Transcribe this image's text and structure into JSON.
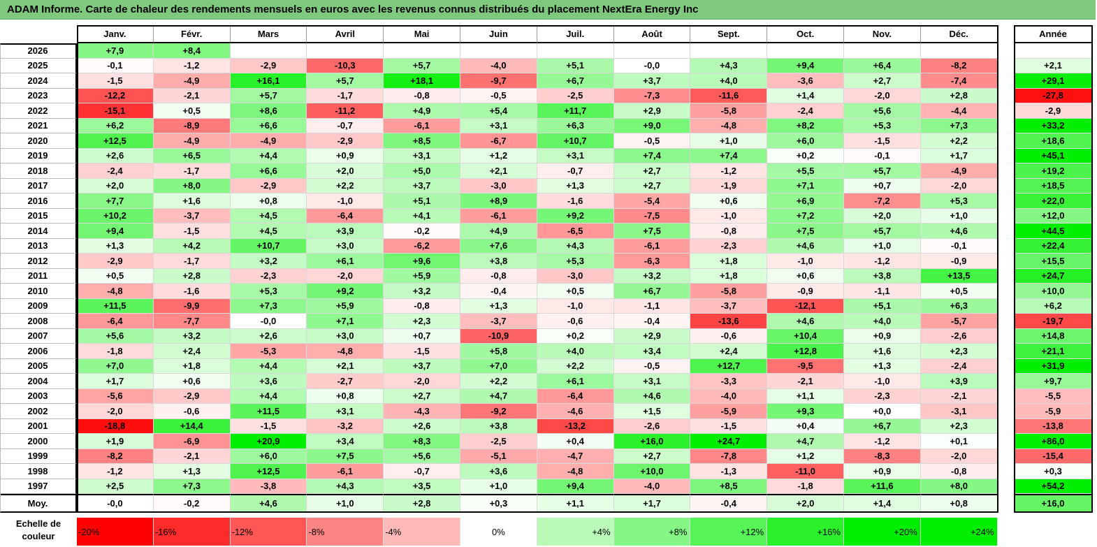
{
  "title": "ADAM Informe. Carte de chaleur des rendements mensuels en euros avec les revenus connus distribués du placement NextEra Energy Inc",
  "chart_data": {
    "type": "heatmap",
    "months": [
      "Janv.",
      "Févr.",
      "Mars",
      "Avril",
      "Mai",
      "Juin",
      "Juil.",
      "Août",
      "Sept.",
      "Oct.",
      "Nov.",
      "Déc."
    ],
    "year_header": "Année",
    "avg_label": "Moy.",
    "rows": [
      {
        "year": "2026",
        "m": [
          "+7,9",
          "+8,4",
          "",
          "",
          "",
          "",
          "",
          "",
          "",
          "",
          "",
          ""
        ],
        "y": ""
      },
      {
        "year": "2025",
        "m": [
          "-0,1",
          "-1,2",
          "-2,9",
          "-10,3",
          "+5,7",
          "-4,0",
          "+5,1",
          "-0,0",
          "+4,3",
          "+9,4",
          "+6,4",
          "-8,2"
        ],
        "y": "+2,1"
      },
      {
        "year": "2024",
        "m": [
          "-1,5",
          "-4,9",
          "+16,1",
          "+5,7",
          "+18,1",
          "-9,7",
          "+6,7",
          "+3,7",
          "+4,0",
          "-3,6",
          "+2,7",
          "-7,4"
        ],
        "y": "+29,1"
      },
      {
        "year": "2023",
        "m": [
          "-12,2",
          "-2,1",
          "+5,7",
          "-1,7",
          "-0,8",
          "-0,5",
          "-2,5",
          "-7,3",
          "-11,6",
          "+1,4",
          "-2,0",
          "+2,8"
        ],
        "y": "-27,8"
      },
      {
        "year": "2022",
        "m": [
          "-15,1",
          "+0,5",
          "+8,6",
          "-11,2",
          "+4,9",
          "+5,4",
          "+11,7",
          "+2,9",
          "-5,8",
          "-2,4",
          "+5,6",
          "-4,4"
        ],
        "y": "-2,9"
      },
      {
        "year": "2021",
        "m": [
          "+6,2",
          "-8,9",
          "+6,6",
          "-0,7",
          "-6,1",
          "+3,1",
          "+6,3",
          "+9,0",
          "-4,8",
          "+8,2",
          "+5,3",
          "+7,3"
        ],
        "y": "+33,2"
      },
      {
        "year": "2020",
        "m": [
          "+12,5",
          "-4,9",
          "-4,9",
          "-2,9",
          "+8,5",
          "-6,7",
          "+10,7",
          "-0,5",
          "+1,0",
          "+6,0",
          "-1,5",
          "+2,2"
        ],
        "y": "+18,6"
      },
      {
        "year": "2019",
        "m": [
          "+2,6",
          "+6,5",
          "+4,4",
          "+0,9",
          "+3,1",
          "+1,2",
          "+3,1",
          "+7,4",
          "+7,4",
          "+0,2",
          "-0,1",
          "+1,7"
        ],
        "y": "+45,1"
      },
      {
        "year": "2018",
        "m": [
          "-2,4",
          "-1,7",
          "+6,6",
          "+2,0",
          "+5,0",
          "+2,1",
          "-0,7",
          "+2,7",
          "-1,2",
          "+5,5",
          "+5,7",
          "-4,9"
        ],
        "y": "+19,2"
      },
      {
        "year": "2017",
        "m": [
          "+2,0",
          "+8,0",
          "-2,9",
          "+2,2",
          "+3,7",
          "-3,0",
          "+1,3",
          "+2,7",
          "-1,9",
          "+7,1",
          "+0,7",
          "-2,0"
        ],
        "y": "+18,5"
      },
      {
        "year": "2016",
        "m": [
          "+7,7",
          "+1,6",
          "+0,8",
          "-1,0",
          "+5,1",
          "+8,9",
          "-1,6",
          "-5,4",
          "+0,6",
          "+6,9",
          "-7,2",
          "+5,3"
        ],
        "y": "+22,0"
      },
      {
        "year": "2015",
        "m": [
          "+10,2",
          "-3,7",
          "+4,5",
          "-6,4",
          "+4,1",
          "-6,1",
          "+9,2",
          "-7,5",
          "-1,0",
          "+7,2",
          "+2,0",
          "+1,0"
        ],
        "y": "+12,0"
      },
      {
        "year": "2014",
        "m": [
          "+9,4",
          "-1,5",
          "+4,5",
          "+3,9",
          "-0,2",
          "+4,9",
          "-6,5",
          "+7,5",
          "-0,8",
          "+7,5",
          "+5,7",
          "+4,6"
        ],
        "y": "+44,5"
      },
      {
        "year": "2013",
        "m": [
          "+1,3",
          "+4,2",
          "+10,7",
          "+3,0",
          "-6,2",
          "+7,6",
          "+4,3",
          "-6,1",
          "-2,3",
          "+4,6",
          "+1,0",
          "-0,1"
        ],
        "y": "+22,4"
      },
      {
        "year": "2012",
        "m": [
          "-2,9",
          "-1,7",
          "+3,2",
          "+6,1",
          "+9,6",
          "+3,8",
          "+5,3",
          "-6,3",
          "+1,8",
          "-1,0",
          "-1,2",
          "-0,9"
        ],
        "y": "+15,5"
      },
      {
        "year": "2011",
        "m": [
          "+0,5",
          "+2,8",
          "-2,3",
          "-2,0",
          "+5,9",
          "-0,8",
          "-3,0",
          "+3,2",
          "+1,8",
          "+0,6",
          "+3,8",
          "+13,5"
        ],
        "y": "+24,7"
      },
      {
        "year": "2010",
        "m": [
          "-4,8",
          "-1,6",
          "+5,3",
          "+9,2",
          "+3,2",
          "-0,4",
          "+0,5",
          "+6,7",
          "-5,8",
          "-0,9",
          "-1,1",
          "+0,5"
        ],
        "y": "+10,0"
      },
      {
        "year": "2009",
        "m": [
          "+11,5",
          "-9,9",
          "+7,3",
          "+5,9",
          "-0,8",
          "+1,3",
          "-1,0",
          "-1,1",
          "-3,7",
          "-12,1",
          "+5,1",
          "+6,3"
        ],
        "y": "+6,2"
      },
      {
        "year": "2008",
        "m": [
          "-6,4",
          "-7,7",
          "-0,0",
          "+7,1",
          "+2,3",
          "-3,7",
          "-0,6",
          "-0,4",
          "-13,6",
          "+4,6",
          "+4,0",
          "-5,7"
        ],
        "y": "-19,7"
      },
      {
        "year": "2007",
        "m": [
          "+5,6",
          "+3,2",
          "+2,6",
          "+3,0",
          "+0,7",
          "-10,9",
          "+0,2",
          "+2,9",
          "-0,6",
          "+10,4",
          "+0,9",
          "-2,6"
        ],
        "y": "+14,8"
      },
      {
        "year": "2006",
        "m": [
          "-1,8",
          "+2,4",
          "-5,3",
          "-4,8",
          "-1,5",
          "+5,8",
          "+4,0",
          "+3,4",
          "+2,4",
          "+12,8",
          "+1,6",
          "+2,3"
        ],
        "y": "+21,1"
      },
      {
        "year": "2005",
        "m": [
          "+7,0",
          "+1,8",
          "+4,4",
          "+2,1",
          "+3,7",
          "+7,0",
          "+2,2",
          "-0,5",
          "+12,7",
          "-9,5",
          "+1,3",
          "-2,4"
        ],
        "y": "+31,9"
      },
      {
        "year": "2004",
        "m": [
          "+1,7",
          "+0,6",
          "+3,6",
          "-2,7",
          "-2,0",
          "+2,2",
          "+6,1",
          "+3,1",
          "-3,3",
          "-2,1",
          "-1,0",
          "+3,9"
        ],
        "y": "+9,7"
      },
      {
        "year": "2003",
        "m": [
          "-5,6",
          "-2,9",
          "+4,4",
          "+0,8",
          "+2,7",
          "+4,7",
          "-6,4",
          "+4,6",
          "-4,0",
          "+1,1",
          "-2,3",
          "-2,1"
        ],
        "y": "-5,5"
      },
      {
        "year": "2002",
        "m": [
          "-2,0",
          "-0,6",
          "+11,5",
          "+3,1",
          "-4,3",
          "-9,2",
          "-4,6",
          "+1,5",
          "-5,9",
          "+9,3",
          "+0,0",
          "-3,1"
        ],
        "y": "-5,9"
      },
      {
        "year": "2001",
        "m": [
          "-18,8",
          "+14,4",
          "-1,5",
          "-3,2",
          "+2,6",
          "+3,8",
          "-13,2",
          "-2,6",
          "-1,5",
          "+0,4",
          "+6,7",
          "+2,3"
        ],
        "y": "-13,8"
      },
      {
        "year": "2000",
        "m": [
          "+1,9",
          "-6,9",
          "+20,9",
          "+3,4",
          "+8,3",
          "-2,5",
          "+0,4",
          "+16,0",
          "+24,7",
          "+4,7",
          "-1,2",
          "+0,1"
        ],
        "y": "+86,0"
      },
      {
        "year": "1999",
        "m": [
          "-8,2",
          "-2,1",
          "+6,0",
          "+7,5",
          "+5,6",
          "-5,1",
          "-4,7",
          "+2,7",
          "-7,8",
          "+1,2",
          "-8,3",
          "-2,0"
        ],
        "y": "-15,4"
      },
      {
        "year": "1998",
        "m": [
          "-1,2",
          "+1,3",
          "+12,5",
          "-6,1",
          "-0,7",
          "+3,6",
          "-4,8",
          "+10,0",
          "-1,3",
          "-11,0",
          "+0,9",
          "-0,8"
        ],
        "y": "+0,3"
      },
      {
        "year": "1997",
        "m": [
          "+2,5",
          "+7,3",
          "-3,8",
          "+4,3",
          "+3,5",
          "+1,0",
          "+9,4",
          "-4,0",
          "+8,5",
          "-1,8",
          "+11,6",
          "+8,0"
        ],
        "y": "+54,2"
      }
    ],
    "averages": {
      "m": [
        "-0,0",
        "-0,2",
        "+4,6",
        "+1,0",
        "+2,8",
        "+0,3",
        "+1,1",
        "+1,7",
        "-0,4",
        "+2,0",
        "+1,4",
        "+0,8"
      ],
      "y": "+16,0"
    },
    "scale": {
      "label_line1": "Echelle de",
      "label_line2": "couleur",
      "stops": [
        {
          "label": "-20%",
          "value": -20
        },
        {
          "label": "-16%",
          "value": -16
        },
        {
          "label": "-12%",
          "value": -12
        },
        {
          "label": "-8%",
          "value": -8
        },
        {
          "label": "-4%",
          "value": -4
        },
        {
          "label": "0%",
          "value": 0
        },
        {
          "label": "+4%",
          "value": 4
        },
        {
          "label": "+8%",
          "value": 8
        },
        {
          "label": "+12%",
          "value": 12
        },
        {
          "label": "+16%",
          "value": 16
        },
        {
          "label": "+20%",
          "value": 20
        },
        {
          "label": "+24%",
          "value": 24
        }
      ]
    },
    "colors": {
      "negative": "#ff0000",
      "neutral": "#ffffff",
      "positive": "#00ee00",
      "title_bg": "#7fc97f"
    }
  }
}
